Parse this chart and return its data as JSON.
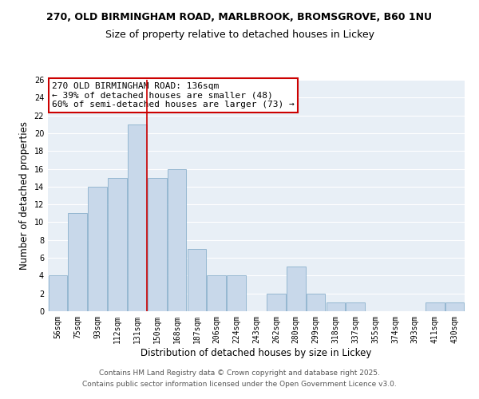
{
  "title1": "270, OLD BIRMINGHAM ROAD, MARLBROOK, BROMSGROVE, B60 1NU",
  "title2": "Size of property relative to detached houses in Lickey",
  "xlabel": "Distribution of detached houses by size in Lickey",
  "ylabel": "Number of detached properties",
  "bar_color": "#c8d8ea",
  "bar_edge_color": "#8ab0cc",
  "grid_color": "#c8d8ea",
  "background_color": "#e8eff6",
  "bins": [
    "56sqm",
    "75sqm",
    "93sqm",
    "112sqm",
    "131sqm",
    "150sqm",
    "168sqm",
    "187sqm",
    "206sqm",
    "224sqm",
    "243sqm",
    "262sqm",
    "280sqm",
    "299sqm",
    "318sqm",
    "337sqm",
    "355sqm",
    "374sqm",
    "393sqm",
    "411sqm",
    "430sqm"
  ],
  "values": [
    4,
    11,
    14,
    15,
    21,
    15,
    16,
    7,
    4,
    4,
    0,
    2,
    5,
    2,
    1,
    1,
    0,
    0,
    0,
    1,
    1
  ],
  "ylim": [
    0,
    26
  ],
  "yticks": [
    0,
    2,
    4,
    6,
    8,
    10,
    12,
    14,
    16,
    18,
    20,
    22,
    24,
    26
  ],
  "red_line_index": 4,
  "annotation_line1": "270 OLD BIRMINGHAM ROAD: 136sqm",
  "annotation_line2": "← 39% of detached houses are smaller (48)",
  "annotation_line3": "60% of semi-detached houses are larger (73) →",
  "red_line_color": "#cc0000",
  "annotation_box_edge": "#cc0000",
  "footer1": "Contains HM Land Registry data © Crown copyright and database right 2025.",
  "footer2": "Contains public sector information licensed under the Open Government Licence v3.0.",
  "title_fontsize": 9,
  "subtitle_fontsize": 9,
  "tick_fontsize": 7,
  "ylabel_fontsize": 8.5,
  "xlabel_fontsize": 8.5,
  "annotation_fontsize": 8,
  "footer_fontsize": 6.5
}
